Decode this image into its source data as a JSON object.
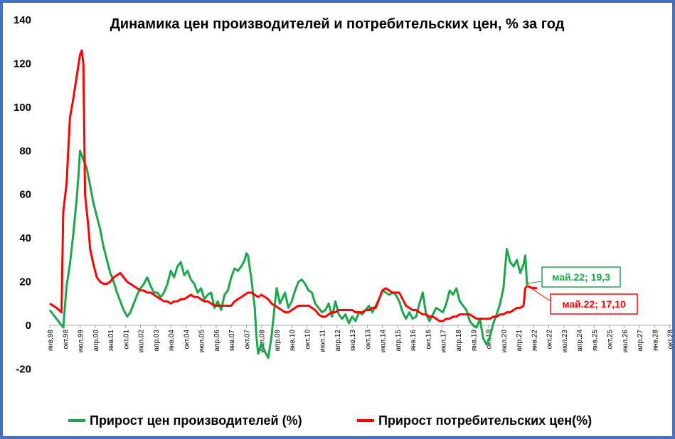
{
  "chart_data": {
    "type": "line",
    "title": "Динамика цен производителей и потребительских цен, % за год",
    "ylim": [
      -20,
      140
    ],
    "yticks": [
      -20,
      0,
      20,
      40,
      60,
      80,
      100,
      120,
      140
    ],
    "x_tick_labels": [
      "янв.98",
      "окт.98",
      "июл.99",
      "апр.00",
      "янв.01",
      "окт.01",
      "июл.02",
      "апр.03",
      "янв.04",
      "окт.04",
      "июл.05",
      "апр.06",
      "янв.07",
      "окт.07",
      "июл.08",
      "апр.09",
      "янв.10",
      "окт.10",
      "июл.11",
      "апр.12",
      "янв.13",
      "окт.13",
      "июл.14",
      "апр.15",
      "янв.16",
      "окт.16",
      "июл.17",
      "апр.18",
      "янв.19",
      "окт.19",
      "июл.20",
      "апр.21",
      "янв.22",
      "окт.22",
      "июл.23",
      "апр.24",
      "янв.25",
      "окт.25",
      "июл.26",
      "апр.27",
      "янв.28",
      "окт.28"
    ],
    "x_unit": "months since янв.98",
    "xlim": [
      0,
      370
    ],
    "legend_position": "bottom",
    "series": [
      {
        "name": "Прирост цен производителей (%)",
        "color": "#1aa64a",
        "points": [
          [
            0,
            7
          ],
          [
            3,
            4
          ],
          [
            6,
            1
          ],
          [
            8,
            -1
          ],
          [
            10,
            18
          ],
          [
            12,
            28
          ],
          [
            14,
            42
          ],
          [
            16,
            58
          ],
          [
            17,
            68
          ],
          [
            18,
            80
          ],
          [
            19,
            78
          ],
          [
            20,
            76
          ],
          [
            22,
            72
          ],
          [
            24,
            64
          ],
          [
            26,
            56
          ],
          [
            28,
            50
          ],
          [
            30,
            44
          ],
          [
            32,
            36
          ],
          [
            34,
            30
          ],
          [
            36,
            24
          ],
          [
            38,
            20
          ],
          [
            40,
            15
          ],
          [
            42,
            11
          ],
          [
            44,
            7
          ],
          [
            46,
            4
          ],
          [
            48,
            6
          ],
          [
            50,
            10
          ],
          [
            52,
            14
          ],
          [
            54,
            17
          ],
          [
            56,
            19
          ],
          [
            58,
            22
          ],
          [
            60,
            18
          ],
          [
            62,
            15
          ],
          [
            64,
            15
          ],
          [
            66,
            13
          ],
          [
            68,
            15
          ],
          [
            70,
            19
          ],
          [
            72,
            25
          ],
          [
            74,
            22
          ],
          [
            76,
            27
          ],
          [
            78,
            29
          ],
          [
            80,
            23
          ],
          [
            82,
            25
          ],
          [
            84,
            21
          ],
          [
            86,
            19
          ],
          [
            88,
            15
          ],
          [
            90,
            17
          ],
          [
            92,
            12
          ],
          [
            94,
            14
          ],
          [
            96,
            15
          ],
          [
            98,
            8
          ],
          [
            100,
            11
          ],
          [
            102,
            7
          ],
          [
            104,
            14
          ],
          [
            106,
            16
          ],
          [
            108,
            22
          ],
          [
            110,
            26
          ],
          [
            112,
            25
          ],
          [
            114,
            27
          ],
          [
            116,
            30
          ],
          [
            117,
            33
          ],
          [
            118,
            32
          ],
          [
            120,
            21
          ],
          [
            122,
            8
          ],
          [
            123,
            -5
          ],
          [
            124,
            -13
          ],
          [
            126,
            -8
          ],
          [
            128,
            -12
          ],
          [
            130,
            -15
          ],
          [
            132,
            -5
          ],
          [
            134,
            10
          ],
          [
            135,
            17
          ],
          [
            137,
            10
          ],
          [
            140,
            15
          ],
          [
            142,
            8
          ],
          [
            144,
            11
          ],
          [
            146,
            16
          ],
          [
            148,
            20
          ],
          [
            150,
            21
          ],
          [
            152,
            19
          ],
          [
            154,
            16
          ],
          [
            156,
            15
          ],
          [
            158,
            10
          ],
          [
            160,
            8
          ],
          [
            162,
            6
          ],
          [
            164,
            7
          ],
          [
            166,
            10
          ],
          [
            168,
            4
          ],
          [
            170,
            11
          ],
          [
            172,
            5
          ],
          [
            174,
            3
          ],
          [
            176,
            5
          ],
          [
            178,
            1
          ],
          [
            180,
            4
          ],
          [
            182,
            2
          ],
          [
            184,
            6
          ],
          [
            186,
            5
          ],
          [
            188,
            7
          ],
          [
            190,
            9
          ],
          [
            192,
            6
          ],
          [
            194,
            9
          ],
          [
            196,
            12
          ],
          [
            198,
            16
          ],
          [
            200,
            15
          ],
          [
            202,
            14
          ],
          [
            204,
            15
          ],
          [
            206,
            14
          ],
          [
            208,
            11
          ],
          [
            210,
            6
          ],
          [
            212,
            3
          ],
          [
            214,
            6
          ],
          [
            216,
            3
          ],
          [
            218,
            4
          ],
          [
            220,
            10
          ],
          [
            222,
            15
          ],
          [
            224,
            5
          ],
          [
            226,
            2
          ],
          [
            228,
            5
          ],
          [
            230,
            8
          ],
          [
            232,
            7
          ],
          [
            234,
            6
          ],
          [
            236,
            10
          ],
          [
            238,
            16
          ],
          [
            240,
            14
          ],
          [
            242,
            17
          ],
          [
            244,
            11
          ],
          [
            246,
            9
          ],
          [
            248,
            7
          ],
          [
            250,
            2
          ],
          [
            252,
            0
          ],
          [
            254,
            -1
          ],
          [
            256,
            3
          ],
          [
            258,
            -6
          ],
          [
            260,
            -9
          ],
          [
            262,
            -5
          ],
          [
            264,
            1
          ],
          [
            266,
            5
          ],
          [
            268,
            10
          ],
          [
            270,
            17
          ],
          [
            272,
            35
          ],
          [
            274,
            29
          ],
          [
            276,
            27
          ],
          [
            278,
            30
          ],
          [
            280,
            24
          ],
          [
            282,
            28
          ],
          [
            283,
            32
          ],
          [
            284,
            19
          ],
          [
            285,
            19.3
          ]
        ]
      },
      {
        "name": "Прирост потребительских цен(%)",
        "color": "#ff0000",
        "points": [
          [
            0,
            10
          ],
          [
            4,
            8
          ],
          [
            7,
            6
          ],
          [
            8,
            52
          ],
          [
            10,
            65
          ],
          [
            12,
            95
          ],
          [
            14,
            104
          ],
          [
            16,
            114
          ],
          [
            18,
            124
          ],
          [
            19,
            126
          ],
          [
            20,
            120
          ],
          [
            21,
            60
          ],
          [
            23,
            45
          ],
          [
            24,
            35
          ],
          [
            26,
            28
          ],
          [
            28,
            22
          ],
          [
            30,
            20
          ],
          [
            32,
            19
          ],
          [
            34,
            19
          ],
          [
            36,
            20
          ],
          [
            38,
            22
          ],
          [
            40,
            23
          ],
          [
            42,
            24
          ],
          [
            44,
            22
          ],
          [
            46,
            20
          ],
          [
            48,
            19
          ],
          [
            50,
            18
          ],
          [
            52,
            17
          ],
          [
            54,
            16
          ],
          [
            56,
            16
          ],
          [
            58,
            15
          ],
          [
            60,
            15
          ],
          [
            62,
            14
          ],
          [
            64,
            13
          ],
          [
            66,
            12
          ],
          [
            68,
            11
          ],
          [
            70,
            11
          ],
          [
            72,
            10
          ],
          [
            74,
            11
          ],
          [
            76,
            11
          ],
          [
            78,
            12
          ],
          [
            80,
            12
          ],
          [
            82,
            13
          ],
          [
            84,
            14
          ],
          [
            86,
            13
          ],
          [
            88,
            13
          ],
          [
            90,
            12
          ],
          [
            92,
            11
          ],
          [
            94,
            11
          ],
          [
            96,
            10
          ],
          [
            98,
            9
          ],
          [
            100,
            9
          ],
          [
            102,
            9
          ],
          [
            104,
            9
          ],
          [
            106,
            9
          ],
          [
            108,
            9
          ],
          [
            110,
            11
          ],
          [
            112,
            12
          ],
          [
            114,
            13
          ],
          [
            116,
            14
          ],
          [
            118,
            15
          ],
          [
            120,
            15
          ],
          [
            122,
            14
          ],
          [
            124,
            13
          ],
          [
            126,
            14
          ],
          [
            128,
            13
          ],
          [
            130,
            12
          ],
          [
            132,
            10
          ],
          [
            134,
            9
          ],
          [
            136,
            8
          ],
          [
            138,
            7
          ],
          [
            140,
            6
          ],
          [
            142,
            6
          ],
          [
            144,
            7
          ],
          [
            146,
            8
          ],
          [
            148,
            9
          ],
          [
            150,
            9
          ],
          [
            152,
            9
          ],
          [
            154,
            9
          ],
          [
            156,
            8
          ],
          [
            158,
            7
          ],
          [
            160,
            5
          ],
          [
            162,
            4
          ],
          [
            164,
            4
          ],
          [
            166,
            5
          ],
          [
            168,
            6
          ],
          [
            170,
            6
          ],
          [
            172,
            7
          ],
          [
            174,
            7
          ],
          [
            176,
            7
          ],
          [
            178,
            7
          ],
          [
            180,
            7
          ],
          [
            182,
            6
          ],
          [
            184,
            6
          ],
          [
            186,
            6
          ],
          [
            188,
            7
          ],
          [
            190,
            7
          ],
          [
            192,
            8
          ],
          [
            194,
            8
          ],
          [
            196,
            12
          ],
          [
            198,
            16
          ],
          [
            200,
            17
          ],
          [
            202,
            16
          ],
          [
            204,
            15
          ],
          [
            206,
            15
          ],
          [
            208,
            15
          ],
          [
            210,
            12
          ],
          [
            212,
            9
          ],
          [
            214,
            8
          ],
          [
            216,
            7
          ],
          [
            218,
            7
          ],
          [
            220,
            6
          ],
          [
            222,
            5
          ],
          [
            224,
            5
          ],
          [
            226,
            4
          ],
          [
            228,
            4
          ],
          [
            230,
            3
          ],
          [
            232,
            2
          ],
          [
            234,
            2
          ],
          [
            236,
            3
          ],
          [
            238,
            3
          ],
          [
            240,
            4
          ],
          [
            242,
            4
          ],
          [
            244,
            5
          ],
          [
            246,
            5
          ],
          [
            248,
            5
          ],
          [
            250,
            5
          ],
          [
            252,
            4
          ],
          [
            254,
            3
          ],
          [
            256,
            3
          ],
          [
            258,
            3
          ],
          [
            260,
            3
          ],
          [
            262,
            3
          ],
          [
            264,
            4
          ],
          [
            266,
            4
          ],
          [
            268,
            5
          ],
          [
            270,
            5
          ],
          [
            272,
            6
          ],
          [
            274,
            6
          ],
          [
            276,
            7
          ],
          [
            278,
            8
          ],
          [
            280,
            8
          ],
          [
            282,
            9
          ],
          [
            283,
            17
          ],
          [
            284,
            18
          ],
          [
            285,
            17.8
          ],
          [
            287,
            17.1
          ],
          [
            290,
            17
          ]
        ]
      }
    ],
    "annotations": [
      {
        "text": "май.22; 19,3",
        "color": "#1aa64a"
      },
      {
        "text": "май.22; 17,10",
        "color": "#ff0000"
      }
    ]
  }
}
